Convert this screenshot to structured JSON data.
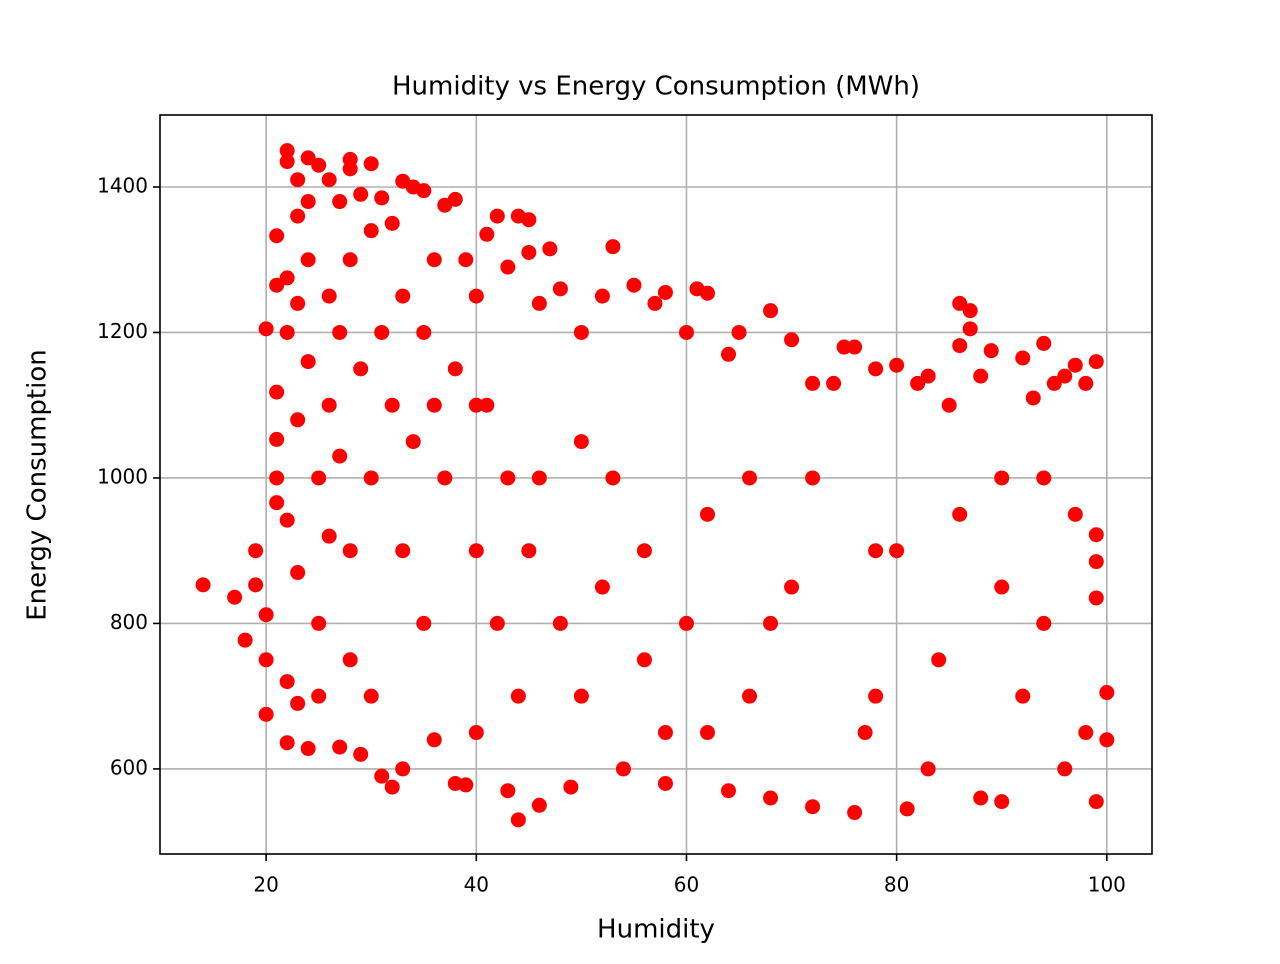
{
  "chart_data": {
    "type": "scatter",
    "title": "Humidity vs Energy Consumption (MWh)",
    "x_label": "Humidity",
    "y_label": "Energy Consumption",
    "color": "#ff0000",
    "grid": true,
    "xlim": [
      9.9,
      104.3
    ],
    "ylim": [
      483,
      1499
    ],
    "xticks": [
      20,
      40,
      60,
      80,
      100
    ],
    "yticks": [
      600,
      800,
      1000,
      1200,
      1400
    ],
    "x": [
      14,
      17,
      18,
      19,
      19,
      20,
      20,
      20,
      20,
      21,
      21,
      21,
      21,
      21,
      21,
      22,
      22,
      22,
      22,
      22,
      22,
      22,
      23,
      23,
      23,
      23,
      23,
      23,
      24,
      24,
      24,
      24,
      24,
      25,
      25,
      25,
      25,
      26,
      26,
      26,
      26,
      27,
      27,
      27,
      27,
      28,
      28,
      28,
      28,
      28,
      29,
      29,
      29,
      30,
      30,
      30,
      30,
      31,
      31,
      31,
      32,
      32,
      32,
      33,
      33,
      33,
      33,
      34,
      34,
      35,
      35,
      35,
      36,
      36,
      37,
      37,
      38,
      38,
      38,
      39,
      39,
      40,
      40,
      40,
      41,
      41,
      42,
      42,
      43,
      43,
      43,
      44,
      44,
      44,
      45,
      45,
      45,
      46,
      46,
      47,
      48,
      48,
      49,
      50,
      50,
      52,
      53,
      53,
      54,
      55,
      56,
      57,
      58,
      58,
      60,
      60,
      61,
      62,
      62,
      64,
      64,
      65,
      66,
      68,
      68,
      70,
      70,
      72,
      72,
      74,
      75,
      76,
      76,
      78,
      78,
      80,
      80,
      81,
      82,
      83,
      83,
      85,
      86,
      86,
      87,
      87,
      88,
      88,
      89,
      90,
      90,
      92,
      93,
      94,
      94,
      95,
      96,
      97,
      97,
      98,
      98,
      99,
      99,
      100,
      100,
      99,
      99,
      99,
      96,
      92,
      84,
      77,
      66,
      56,
      50,
      46,
      40,
      36,
      52,
      62,
      72,
      86,
      94,
      58,
      68,
      78,
      90
    ],
    "values": [
      853,
      836,
      777,
      900,
      853,
      1205,
      675,
      750,
      812,
      1333,
      1265,
      1118,
      1053,
      1000,
      966,
      1450,
      1435,
      1275,
      1200,
      942,
      720,
      636,
      1410,
      1360,
      1240,
      1080,
      870,
      690,
      1440,
      1380,
      1300,
      1160,
      628,
      1430,
      1000,
      800,
      700,
      1410,
      1250,
      1100,
      920,
      1380,
      1200,
      1030,
      630,
      1438,
      1425,
      1300,
      900,
      750,
      1390,
      1150,
      620,
      1432,
      1340,
      1000,
      700,
      1385,
      1200,
      590,
      1350,
      1100,
      575,
      1408,
      1250,
      900,
      600,
      1400,
      1050,
      1395,
      1200,
      800,
      1300,
      640,
      1375,
      1000,
      1383,
      1150,
      580,
      1300,
      578,
      1250,
      900,
      650,
      1335,
      1100,
      1360,
      800,
      1290,
      1000,
      570,
      1360,
      530,
      700,
      1355,
      1310,
      900,
      1240,
      550,
      1315,
      1260,
      800,
      575,
      1200,
      700,
      1250,
      1318,
      1000,
      600,
      1265,
      900,
      1240,
      1255,
      580,
      1200,
      800,
      1260,
      1254,
      650,
      1170,
      570,
      1200,
      1000,
      1230,
      560,
      1190,
      850,
      1130,
      548,
      1130,
      1180,
      1180,
      540,
      1150,
      700,
      1155,
      900,
      545,
      1130,
      1140,
      600,
      1100,
      1240,
      1182,
      1230,
      1205,
      1140,
      560,
      1175,
      1000,
      555,
      1165,
      1110,
      1185,
      800,
      1130,
      1140,
      1155,
      950,
      1130,
      650,
      1160,
      555,
      705,
      640,
      885,
      835,
      922,
      600,
      700,
      750,
      650,
      700,
      750,
      1050,
      1000,
      1100,
      1100,
      850,
      950,
      1000,
      950,
      1000,
      650,
      800,
      900,
      850
    ]
  }
}
